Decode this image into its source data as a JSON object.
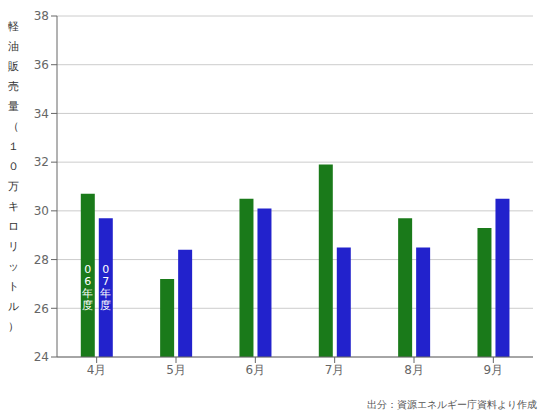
{
  "chart_data": {
    "type": "bar",
    "categories": [
      "4月",
      "5月",
      "6月",
      "7月",
      "8月",
      "9月"
    ],
    "series": [
      {
        "name": "06年度",
        "color": "#1a7a1a",
        "values": [
          30.7,
          27.2,
          30.5,
          31.9,
          29.7,
          29.3
        ]
      },
      {
        "name": "07年度",
        "color": "#2222cc",
        "values": [
          29.7,
          28.4,
          30.1,
          28.5,
          28.5,
          30.5
        ]
      }
    ],
    "y_label": "軽油販売量（１０万キロリットル）",
    "annotation": "出分：資源エネルギー庁資料より作成",
    "ylim": [
      24,
      38
    ],
    "yticks": [
      24,
      26,
      28,
      30,
      32,
      34,
      36,
      38
    ],
    "grid": true
  }
}
